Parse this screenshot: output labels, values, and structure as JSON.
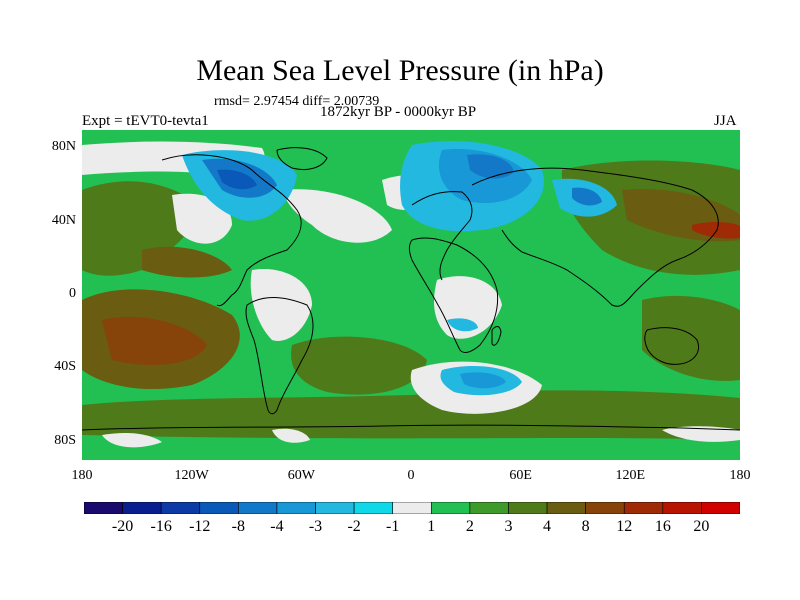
{
  "title": "Mean Sea Level Pressure (in hPa)",
  "stats": "rmsd= 2.97454  diff= 2.00739",
  "period": "1872kyr BP - 0000kyr BP",
  "experiment": "Expt = tEVT0-tevta1",
  "season": "JJA",
  "axes": {
    "lat_labels": [
      "80N",
      "40N",
      "0",
      "40S",
      "80S"
    ],
    "lat_values": [
      80,
      40,
      0,
      -40,
      -80
    ],
    "lon_labels": [
      "180",
      "120W",
      "60W",
      "0",
      "60E",
      "120E",
      "180"
    ],
    "lon_values": [
      -180,
      -120,
      -60,
      0,
      60,
      120,
      180
    ],
    "lon_range": [
      -180,
      180
    ],
    "lat_range": [
      -90,
      90
    ]
  },
  "colorbar": {
    "labels": [
      "-20",
      "-16",
      "-12",
      "-8",
      "-4",
      "-3",
      "-2",
      "-1",
      "1",
      "2",
      "3",
      "4",
      "8",
      "12",
      "16",
      "20"
    ],
    "colors": [
      "#1a0a6e",
      "#0a1f8f",
      "#0c3aa6",
      "#0a58b8",
      "#1478c8",
      "#1898d6",
      "#23b8e0",
      "#10d8e8",
      "#ececec",
      "#22c053",
      "#3d9a2b",
      "#4f7a1a",
      "#6a5c10",
      "#86440a",
      "#9e2a06",
      "#b81402",
      "#d00000"
    ]
  }
}
